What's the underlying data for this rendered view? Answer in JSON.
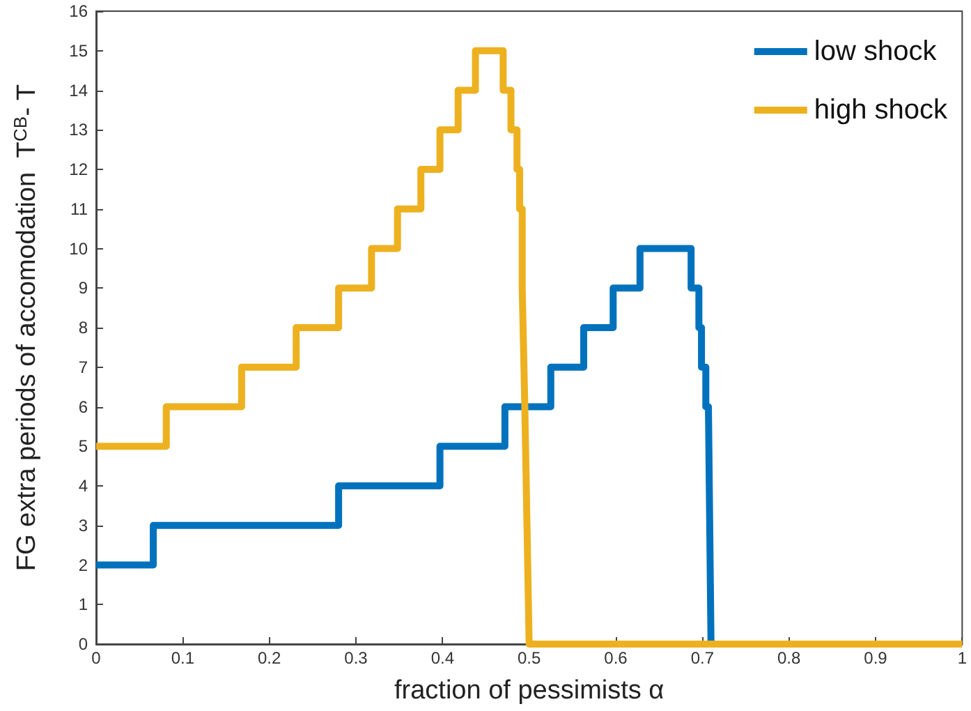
{
  "chart_data": {
    "type": "line",
    "xlabel": "fraction of pessimists α",
    "ylabel": "FG extra periods of accomodation  T$^{CB}$- T",
    "xlim": [
      0,
      1
    ],
    "xticks": [
      0,
      0.1,
      0.2,
      0.3,
      0.4,
      0.5,
      0.6,
      0.7,
      0.8,
      0.9,
      1
    ],
    "ylim": [
      0,
      16
    ],
    "yticks": [
      0,
      1,
      2,
      3,
      4,
      5,
      6,
      7,
      8,
      9,
      10,
      11,
      12,
      13,
      14,
      15,
      16
    ],
    "grid": false,
    "legend": "top right",
    "marker": "none",
    "line_style": "solid",
    "series": [
      {
        "name": "low shock",
        "color": "#0072bd",
        "x": [
          0,
          0.066,
          0.066,
          0.28,
          0.28,
          0.397,
          0.397,
          0.472,
          0.472,
          0.525,
          0.525,
          0.563,
          0.563,
          0.597,
          0.597,
          0.628,
          0.628,
          0.687,
          0.687,
          0.696,
          0.696,
          0.699,
          0.699,
          0.704,
          0.704,
          0.707,
          0.71
        ],
        "values": [
          2,
          2,
          3,
          3,
          4,
          4,
          5,
          5,
          6,
          6,
          7,
          7,
          8,
          8,
          9,
          9,
          10,
          10,
          9,
          9,
          8,
          8,
          7,
          7,
          6,
          6,
          0
        ]
      },
      {
        "name": "high shock",
        "color": "#edb120",
        "x": [
          0,
          0.081,
          0.081,
          0.168,
          0.168,
          0.231,
          0.231,
          0.28,
          0.28,
          0.318,
          0.318,
          0.348,
          0.348,
          0.375,
          0.375,
          0.397,
          0.397,
          0.418,
          0.418,
          0.438,
          0.438,
          0.47,
          0.47,
          0.479,
          0.479,
          0.486,
          0.486,
          0.489,
          0.489,
          0.492,
          0.492,
          0.495,
          0.5,
          1
        ],
        "values": [
          5,
          5,
          6,
          6,
          7,
          7,
          8,
          8,
          9,
          9,
          10,
          10,
          11,
          11,
          12,
          12,
          13,
          13,
          14,
          14,
          15,
          15,
          14,
          14,
          13,
          13,
          12,
          12,
          11,
          11,
          9,
          6,
          0,
          0
        ]
      }
    ]
  }
}
